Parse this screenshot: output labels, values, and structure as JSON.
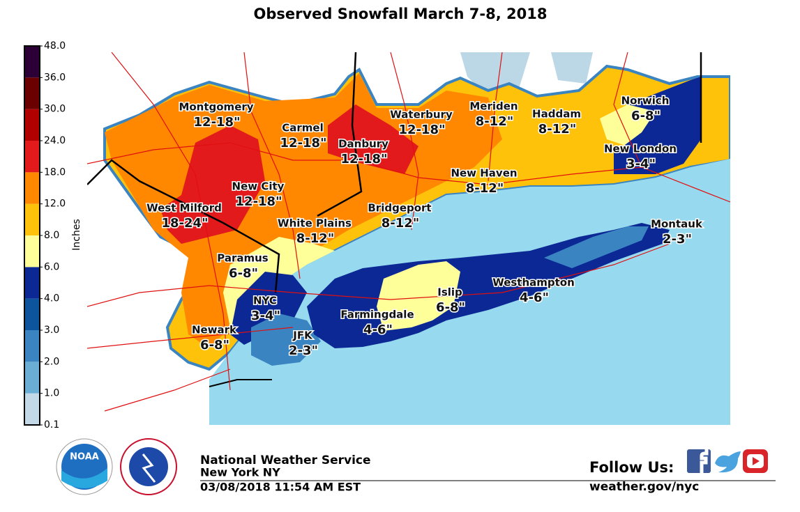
{
  "title": "Observed Snowfall March 7-8, 2018",
  "colorbar": {
    "label": "Inches",
    "ticks": [
      "0.1",
      "1.0",
      "2.0",
      "3.0",
      "4.0",
      "6.0",
      "8.0",
      "12.0",
      "18.0",
      "24.0",
      "30.0",
      "36.0",
      "48.0"
    ],
    "colors": [
      "#c4d9e8",
      "#6aaed6",
      "#3a84c2",
      "#0c549c",
      "#0b2894",
      "#ffff99",
      "#ffc20a",
      "#ff8800",
      "#e31a1c",
      "#b00000",
      "#6a0000",
      "#2c0036"
    ]
  },
  "places": [
    {
      "name": "Montgomery",
      "amount": "12-18\""
    },
    {
      "name": "Carmel",
      "amount": "12-18\""
    },
    {
      "name": "Danbury",
      "amount": "12-18\""
    },
    {
      "name": "Waterbury",
      "amount": "12-18\""
    },
    {
      "name": "Meriden",
      "amount": "8-12\""
    },
    {
      "name": "Haddam",
      "amount": "8-12\""
    },
    {
      "name": "Norwich",
      "amount": "6-8\""
    },
    {
      "name": "New London",
      "amount": "3-4\""
    },
    {
      "name": "New Haven",
      "amount": "8-12\""
    },
    {
      "name": "New City",
      "amount": "12-18\""
    },
    {
      "name": "West Milford",
      "amount": "18-24\""
    },
    {
      "name": "Bridgeport",
      "amount": "8-12\""
    },
    {
      "name": "White Plains",
      "amount": "8-12\""
    },
    {
      "name": "Montauk",
      "amount": "2-3\""
    },
    {
      "name": "Paramus",
      "amount": "6-8\""
    },
    {
      "name": "NYC",
      "amount": "3-4\""
    },
    {
      "name": "Islip",
      "amount": "6-8\""
    },
    {
      "name": "Westhampton",
      "amount": "4-6\""
    },
    {
      "name": "Farmingdale",
      "amount": "4-6\""
    },
    {
      "name": "JFK",
      "amount": "2-3\""
    },
    {
      "name": "Newark",
      "amount": "6-8\""
    }
  ],
  "footer": {
    "org": "National Weather Service",
    "office": "New York NY",
    "timestamp": "03/08/2018 11:54 AM EST",
    "follow": "Follow Us:",
    "url": "weather.gov/nyc",
    "logo": "NOAA"
  }
}
